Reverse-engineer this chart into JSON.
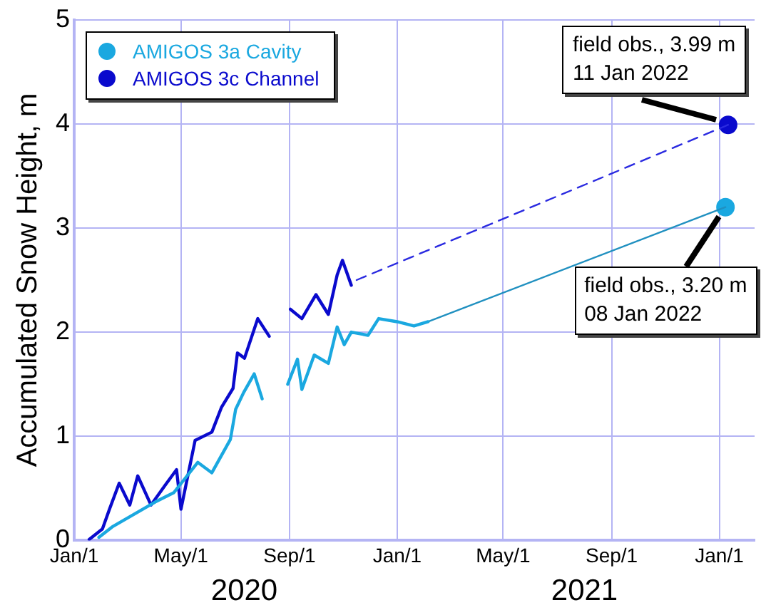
{
  "chart_data": {
    "type": "line",
    "ylabel": "Accumulated Snow Height, m",
    "xlim": [
      "2020-01-01",
      "2022-02-10"
    ],
    "xticks": [
      {
        "value": "2020-01-01",
        "label": "Jan/1"
      },
      {
        "value": "2020-05-01",
        "label": "May/1"
      },
      {
        "value": "2020-09-01",
        "label": "Sep/1"
      },
      {
        "value": "2021-01-01",
        "label": "Jan/1"
      },
      {
        "value": "2021-05-01",
        "label": "May/1"
      },
      {
        "value": "2021-09-01",
        "label": "Sep/1"
      },
      {
        "value": "2022-01-01",
        "label": "Jan/1"
      }
    ],
    "ylim": [
      0,
      5
    ],
    "yticks": [
      0,
      1,
      2,
      3,
      4,
      5
    ],
    "grid": true,
    "legend": "top left",
    "series": [
      {
        "name": "AMIGOS 3a Cavity",
        "color": "#1aa8e0",
        "marker": "none",
        "x": [
          "2020-01-29",
          "2020-02-13",
          "2020-04-02",
          "2020-04-23",
          "2020-05-20",
          "2020-06-05",
          "2020-06-26",
          "2020-07-02",
          "2020-07-11",
          "2020-07-23",
          "2020-08-01",
          "2020-08-20",
          "2020-08-30",
          "2020-09-10",
          "2020-09-15",
          "2020-09-29",
          "2020-10-15",
          "2020-10-25",
          "2020-11-02",
          "2020-11-10",
          "2020-11-29",
          "2020-12-11",
          "2021-01-01",
          "2021-01-20",
          "2021-02-05"
        ],
        "values": [
          0.03,
          0.13,
          0.37,
          0.46,
          0.75,
          0.65,
          0.97,
          1.26,
          1.42,
          1.6,
          1.36,
          null,
          1.5,
          1.74,
          1.45,
          1.78,
          1.7,
          2.05,
          1.88,
          2.0,
          1.97,
          2.13,
          2.1,
          2.06,
          2.1
        ]
      },
      {
        "name": "AMIGOS 3c Channel",
        "color": "#0a0acd",
        "marker": "none",
        "x": [
          "2020-01-18",
          "2020-02-02",
          "2020-02-10",
          "2020-02-21",
          "2020-03-04",
          "2020-03-13",
          "2020-03-28",
          "2020-04-13",
          "2020-04-26",
          "2020-05-01",
          "2020-05-17",
          "2020-06-05",
          "2020-06-16",
          "2020-06-29",
          "2020-07-04",
          "2020-07-12",
          "2020-07-27",
          "2020-08-09",
          "2020-08-20",
          "2020-09-02",
          "2020-09-15",
          "2020-10-01",
          "2020-10-15",
          "2020-10-25",
          "2020-10-31",
          "2020-11-10"
        ],
        "values": [
          0.01,
          0.11,
          0.3,
          0.55,
          0.34,
          0.62,
          0.34,
          0.53,
          0.68,
          0.3,
          0.96,
          1.04,
          1.28,
          1.46,
          1.8,
          1.75,
          2.13,
          1.96,
          null,
          2.22,
          2.13,
          2.36,
          2.17,
          2.55,
          2.69,
          2.45
        ]
      },
      {
        "color": "#2090c0",
        "type": "line",
        "line_style": "solid",
        "marker": "none",
        "x": [
          "2021-02-05",
          "2022-01-08"
        ],
        "values": [
          2.1,
          3.2
        ]
      },
      {
        "color": "#2a2ae0",
        "type": "line",
        "line_style": "dashed",
        "marker": "none",
        "x": [
          "2020-11-16",
          "2022-01-11"
        ],
        "values": [
          2.5,
          3.99
        ]
      },
      {
        "color": "#1aa8e0",
        "type": "scatter",
        "marker": "circle",
        "x": [
          "2022-01-08"
        ],
        "values": [
          3.2
        ]
      },
      {
        "color": "#0a0acd",
        "type": "scatter",
        "marker": "circle",
        "x": [
          "2022-01-11"
        ],
        "values": [
          3.99
        ]
      }
    ],
    "annotations": [
      {
        "text": "field obs., 3.99 m\n11 Jan 2022",
        "x": "2022-01-11",
        "y": 3.99
      },
      {
        "text": "field obs., 3.20 m\n08 Jan 2022",
        "x": "2022-01-08",
        "y": 3.2
      },
      "2020",
      "2021"
    ]
  }
}
